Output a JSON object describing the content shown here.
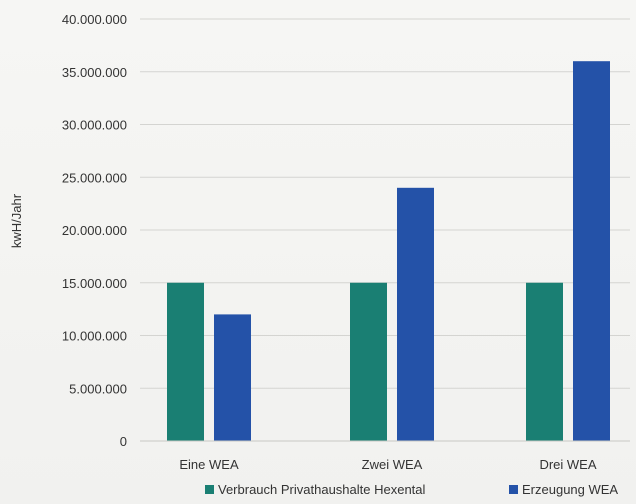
{
  "chart_data": {
    "type": "bar",
    "title": "",
    "xlabel": "",
    "ylabel": "kwH/Jahr",
    "categories": [
      "Eine WEA",
      "Zwei WEA",
      "Drei WEA"
    ],
    "series": [
      {
        "name": "Verbrauch Privathaushalte Hexental",
        "color": "#1a7f73",
        "values": [
          15000000,
          15000000,
          15000000
        ]
      },
      {
        "name": "Erzeugung WEA",
        "color": "#2452a8",
        "values": [
          12000000,
          24000000,
          36000000
        ]
      }
    ],
    "ylim": [
      0,
      40000000
    ],
    "yticks": [
      0,
      5000000,
      10000000,
      15000000,
      20000000,
      25000000,
      30000000,
      35000000,
      40000000
    ],
    "ytick_labels": [
      "0",
      "5.000.000",
      "10.000.000",
      "15.000.000",
      "20.000.000",
      "25.000.000",
      "30.000.000",
      "35.000.000",
      "40.000.000"
    ],
    "grid": true,
    "legend_position": "bottom"
  }
}
